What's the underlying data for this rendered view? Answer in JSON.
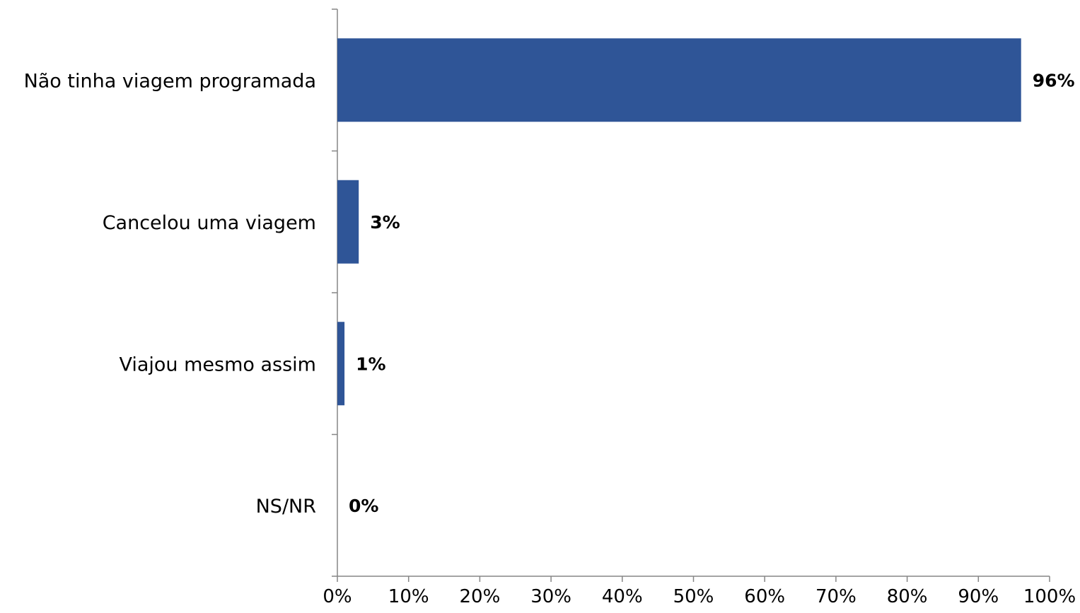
{
  "chart_data": {
    "type": "bar",
    "orientation": "horizontal",
    "categories": [
      "Não tinha viagem programada",
      "Cancelou uma viagem",
      "Viajou mesmo assim",
      "NS/NR"
    ],
    "values": [
      96,
      3,
      1,
      0
    ],
    "data_labels": [
      "96%",
      "3%",
      "1%",
      "0%"
    ],
    "xlim": [
      0,
      100
    ],
    "x_ticks": [
      0,
      10,
      20,
      30,
      40,
      50,
      60,
      70,
      80,
      90,
      100
    ],
    "x_tick_labels": [
      "0%",
      "10%",
      "20%",
      "30%",
      "40%",
      "50%",
      "60%",
      "70%",
      "80%",
      "90%",
      "100%"
    ],
    "title": "",
    "xlabel": "",
    "ylabel": "",
    "grid": false,
    "legend": "none",
    "colors": {
      "bar": "#2F5597",
      "axis": "#868686"
    }
  }
}
